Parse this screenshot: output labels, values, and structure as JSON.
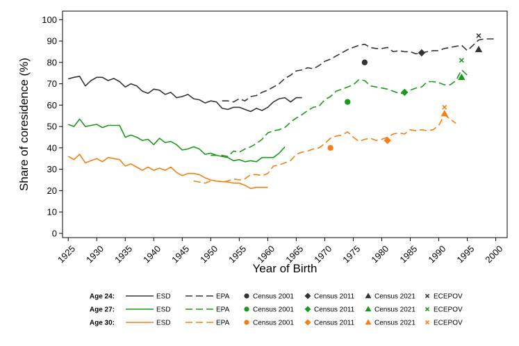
{
  "chart_data": {
    "type": "line",
    "xlabel": "Year of Birth",
    "ylabel": "Share of coresidence (%)",
    "xlim": [
      1924,
      2002
    ],
    "ylim": [
      -2,
      104
    ],
    "xticks": [
      1925,
      1930,
      1935,
      1940,
      1945,
      1950,
      1955,
      1960,
      1965,
      1970,
      1975,
      1980,
      1985,
      1990,
      1995,
      2000
    ],
    "xtick_labels": [
      "1925",
      "1930",
      "1935",
      "1940",
      "1945",
      "1950",
      "1955",
      "1960",
      "1965",
      "1970",
      "1975",
      "1980",
      "1985",
      "1990",
      "1995",
      "2000"
    ],
    "yticks": [
      0,
      10,
      20,
      30,
      40,
      50,
      60,
      70,
      80,
      90,
      100
    ],
    "ytick_labels": [
      "0",
      "10",
      "20",
      "30",
      "40",
      "50",
      "60",
      "70",
      "80",
      "90",
      "100"
    ],
    "colors": {
      "age24": "#333333",
      "age27": "#1a9a1a",
      "age30": "#f47f13"
    },
    "series": [
      {
        "name": "ESD",
        "group": "Age 24",
        "color_key": "age24",
        "style": "solid",
        "x": [
          1925,
          1926,
          1927,
          1928,
          1929,
          1930,
          1931,
          1932,
          1933,
          1934,
          1935,
          1936,
          1937,
          1938,
          1939,
          1940,
          1941,
          1942,
          1943,
          1944,
          1945,
          1946,
          1947,
          1948,
          1949,
          1950,
          1951,
          1952,
          1953,
          1954,
          1955,
          1956,
          1957,
          1958,
          1959,
          1960,
          1961,
          1962,
          1963,
          1964,
          1965,
          1966
        ],
        "y": [
          72.3,
          73,
          73.5,
          69,
          71.5,
          73,
          73,
          71.5,
          72.5,
          71,
          68.5,
          70,
          69,
          66.5,
          65.5,
          67.5,
          67,
          65,
          66,
          63.5,
          64,
          65,
          63,
          62.5,
          61,
          62,
          61.5,
          58.5,
          58,
          59,
          59,
          58,
          57,
          58.5,
          57.5,
          59,
          61.5,
          63,
          63.5,
          61.5,
          63.5,
          63.5
        ]
      },
      {
        "name": "EPA",
        "group": "Age 24",
        "color_key": "age24",
        "style": "dashed",
        "x": [
          1952,
          1953,
          1954,
          1955,
          1956,
          1957,
          1958,
          1959,
          1960,
          1961,
          1962,
          1963,
          1964,
          1965,
          1966,
          1967,
          1968,
          1969,
          1970,
          1971,
          1972,
          1973,
          1974,
          1975,
          1976,
          1977,
          1978,
          1979,
          1980,
          1981,
          1982,
          1983,
          1984,
          1985,
          1986,
          1987,
          1988,
          1989,
          1990,
          1991,
          1992,
          1993,
          1994,
          1995,
          1996,
          1997,
          1998,
          1999,
          2000
        ],
        "y": [
          62,
          62,
          61.5,
          63,
          62,
          64,
          64.5,
          66,
          67,
          68.5,
          70,
          72.5,
          74,
          76,
          76.5,
          77.5,
          77,
          78.5,
          80.5,
          81.5,
          83,
          84.5,
          86,
          87,
          88,
          88.5,
          87,
          86.5,
          86.5,
          87,
          85,
          85.5,
          85,
          85,
          84,
          84.5,
          85,
          85.5,
          85.5,
          86.5,
          87,
          87.5,
          88,
          85.5,
          88,
          90.5,
          91,
          91,
          91
        ]
      },
      {
        "name": "ESD",
        "group": "Age 27",
        "color_key": "age27",
        "style": "solid",
        "x": [
          1925,
          1926,
          1927,
          1928,
          1929,
          1930,
          1931,
          1932,
          1933,
          1934,
          1935,
          1936,
          1937,
          1938,
          1939,
          1940,
          1941,
          1942,
          1943,
          1944,
          1945,
          1946,
          1947,
          1948,
          1949,
          1950,
          1951,
          1952,
          1953,
          1954,
          1955,
          1956,
          1957,
          1958,
          1959,
          1960,
          1961,
          1962,
          1963
        ],
        "y": [
          51,
          50,
          53.5,
          50,
          50.5,
          51,
          49.5,
          50.5,
          50.5,
          50.5,
          45,
          46,
          45,
          43.5,
          44,
          41.5,
          44.5,
          42.5,
          43,
          41.5,
          39,
          39.5,
          40.5,
          39.5,
          37,
          37.5,
          36.5,
          36,
          35.5,
          34,
          34.5,
          33.5,
          34,
          33.5,
          35.5,
          35.5,
          35.5,
          37.5,
          40.5
        ]
      },
      {
        "name": "EPA",
        "group": "Age 27",
        "color_key": "age27",
        "style": "dashed",
        "x": [
          1950,
          1951,
          1952,
          1953,
          1954,
          1955,
          1956,
          1957,
          1958,
          1959,
          1960,
          1961,
          1962,
          1963,
          1964,
          1965,
          1966,
          1967,
          1968,
          1969,
          1970,
          1971,
          1972,
          1973,
          1974,
          1975,
          1976,
          1977,
          1978,
          1979,
          1980,
          1981,
          1982,
          1983,
          1984,
          1985,
          1986,
          1987,
          1988,
          1989,
          1990,
          1991,
          1992,
          1993,
          1994,
          1995
        ],
        "y": [
          36.5,
          36.5,
          36.5,
          36,
          38.5,
          38,
          39.5,
          40.5,
          42,
          44,
          47,
          48,
          48.5,
          49.5,
          52,
          54,
          55.5,
          57.5,
          59,
          59.5,
          62.5,
          64,
          66.5,
          67.5,
          68.5,
          69.5,
          72,
          71.5,
          69,
          68.5,
          68,
          67.5,
          66.5,
          65.5,
          65.5,
          67,
          68,
          68.5,
          71,
          71,
          70.5,
          69.5,
          69.5,
          71.5,
          76.5,
          74
        ]
      },
      {
        "name": "ESD",
        "group": "Age 30",
        "color_key": "age30",
        "style": "solid",
        "x": [
          1925,
          1926,
          1927,
          1928,
          1929,
          1930,
          1931,
          1932,
          1933,
          1934,
          1935,
          1936,
          1937,
          1938,
          1939,
          1940,
          1941,
          1942,
          1943,
          1944,
          1945,
          1946,
          1947,
          1948,
          1949,
          1950,
          1951,
          1952,
          1953,
          1954,
          1955,
          1956,
          1957,
          1958,
          1959,
          1960
        ],
        "y": [
          36,
          34.5,
          37,
          33,
          34,
          35,
          33.5,
          35.5,
          35,
          34.5,
          31.5,
          32.5,
          31,
          29.5,
          31,
          29.5,
          30.5,
          29.5,
          31,
          28.5,
          27,
          28,
          28,
          27.5,
          26,
          25,
          24.5,
          24.2,
          24,
          23.5,
          23.5,
          22.5,
          21,
          21.5,
          21.5,
          21.5
        ]
      },
      {
        "name": "EPA",
        "group": "Age 30",
        "color_key": "age30",
        "style": "dashed",
        "x": [
          1947,
          1948,
          1949,
          1950,
          1951,
          1952,
          1953,
          1954,
          1955,
          1956,
          1957,
          1958,
          1959,
          1960,
          1961,
          1962,
          1963,
          1964,
          1965,
          1966,
          1967,
          1968,
          1969,
          1970,
          1971,
          1972,
          1973,
          1974,
          1975,
          1976,
          1977,
          1978,
          1979,
          1980,
          1981,
          1982,
          1983,
          1984,
          1985,
          1986,
          1987,
          1988,
          1989,
          1990,
          1991,
          1992,
          1993
        ],
        "y": [
          24.5,
          24,
          23.5,
          24.5,
          24.5,
          24,
          24.5,
          25.5,
          25,
          25.5,
          27.5,
          27.5,
          27,
          28,
          31.5,
          32,
          33,
          34,
          37,
          38,
          38.5,
          39.5,
          40,
          42,
          44.5,
          45.5,
          46,
          47.5,
          45,
          43,
          44,
          44.5,
          43.5,
          44,
          45,
          46.5,
          47,
          46.5,
          48.5,
          48,
          48.5,
          48,
          48.5,
          50.5,
          55.5,
          53.5,
          51.5
        ]
      }
    ],
    "points": [
      {
        "group": "Age 24",
        "color_key": "age24",
        "marker": "circle",
        "label": "Census 2001",
        "x": 1977,
        "y": 80
      },
      {
        "group": "Age 24",
        "color_key": "age24",
        "marker": "diamond",
        "label": "Census 2011",
        "x": 1987,
        "y": 84.5
      },
      {
        "group": "Age 24",
        "color_key": "age24",
        "marker": "triangle",
        "label": "Census 2021",
        "x": 1997,
        "y": 86
      },
      {
        "group": "Age 24",
        "color_key": "age24",
        "marker": "x",
        "label": "ECEPOV",
        "x": 1997,
        "y": 92.5
      },
      {
        "group": "Age 27",
        "color_key": "age27",
        "marker": "circle",
        "label": "Census 2001",
        "x": 1974,
        "y": 61.5
      },
      {
        "group": "Age 27",
        "color_key": "age27",
        "marker": "diamond",
        "label": "Census 2011",
        "x": 1984,
        "y": 66
      },
      {
        "group": "Age 27",
        "color_key": "age27",
        "marker": "triangle",
        "label": "Census 2021",
        "x": 1994,
        "y": 73
      },
      {
        "group": "Age 27",
        "color_key": "age27",
        "marker": "x",
        "label": "ECEPOV",
        "x": 1994,
        "y": 81
      },
      {
        "group": "Age 30",
        "color_key": "age30",
        "marker": "circle",
        "label": "Census 2001",
        "x": 1971,
        "y": 40
      },
      {
        "group": "Age 30",
        "color_key": "age30",
        "marker": "diamond",
        "label": "Census 2011",
        "x": 1981,
        "y": 43.5
      },
      {
        "group": "Age 30",
        "color_key": "age30",
        "marker": "triangle",
        "label": "Census 2021",
        "x": 1991,
        "y": 56
      },
      {
        "group": "Age 30",
        "color_key": "age30",
        "marker": "x",
        "label": "ECEPOV",
        "x": 1991,
        "y": 59
      }
    ],
    "legend": {
      "position": "bottom",
      "rows": [
        {
          "title": "Age 24:",
          "color_key": "age24"
        },
        {
          "title": "Age 27:",
          "color_key": "age27"
        },
        {
          "title": "Age 30:",
          "color_key": "age30"
        }
      ],
      "columns": [
        {
          "label": "ESD",
          "marker": "line-solid"
        },
        {
          "label": "EPA",
          "marker": "line-dashed"
        },
        {
          "label": "Census 2001",
          "marker": "circle"
        },
        {
          "label": "Census 2011",
          "marker": "diamond"
        },
        {
          "label": "Census 2021",
          "marker": "triangle"
        },
        {
          "label": "ECEPOV",
          "marker": "x"
        }
      ]
    },
    "grid": false
  }
}
